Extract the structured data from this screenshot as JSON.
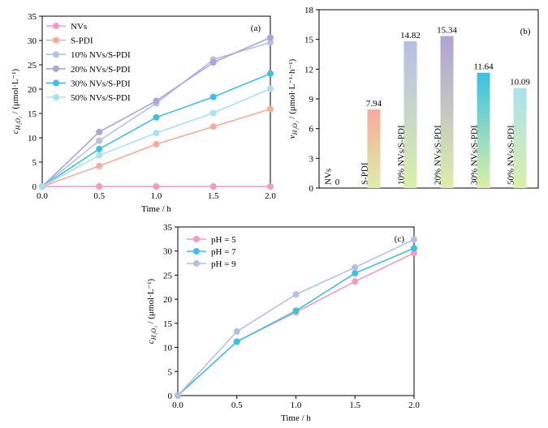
{
  "chart_data": [
    {
      "type": "line",
      "panel_label": "(a)",
      "xlabel": "Time / h",
      "ylabel_main": "c",
      "ylabel_sub": "H₂O₂",
      "ylabel_rest": " / (μmol·L⁻¹)",
      "xlim": [
        0,
        2.0
      ],
      "ylim": [
        0,
        35
      ],
      "xticks": [
        "0.0",
        "0.5",
        "1.0",
        "1.5",
        "2.0"
      ],
      "yticks": [
        "0",
        "5",
        "10",
        "15",
        "20",
        "25",
        "30",
        "35"
      ],
      "legend_position": "top-left",
      "x": [
        0,
        0.5,
        1.0,
        1.5,
        2.0
      ],
      "series": [
        {
          "name": "NVs",
          "color": "#f19ac6",
          "values": [
            0,
            0,
            0,
            0,
            0
          ]
        },
        {
          "name": "S-PDI",
          "color": "#f8ab9b",
          "values": [
            0,
            4.2,
            8.7,
            12.3,
            15.9
          ]
        },
        {
          "name": "10% NVs/S-PDI",
          "color": "#b4bfe6",
          "values": [
            0,
            9.4,
            17.1,
            26.1,
            29.6
          ]
        },
        {
          "name": "20% NVs/S-PDI",
          "color": "#b0a2d6",
          "values": [
            0,
            11.2,
            17.6,
            25.5,
            30.6
          ]
        },
        {
          "name": "30% NVs/S-PDI",
          "color": "#3dc0e1",
          "values": [
            0,
            7.7,
            14.2,
            18.4,
            23.2
          ]
        },
        {
          "name": "50% NVs/S-PDI",
          "color": "#abe1ee",
          "values": [
            0,
            6.4,
            11.0,
            15.1,
            20.1
          ]
        }
      ]
    },
    {
      "type": "bar",
      "panel_label": "(b)",
      "ylabel_main": "v",
      "ylabel_sub": "H₂O₂",
      "ylabel_rest": " / (μmol·L⁻¹·h⁻¹)",
      "ylim": [
        0,
        18
      ],
      "yticks": [
        "0",
        "3",
        "6",
        "9",
        "12",
        "15",
        "18"
      ],
      "categories": [
        "NVs",
        "S-PDI",
        "10% NVs/S-PDI",
        "20% NVs/S-PDI",
        "30% NVs/S-PDI",
        "50% NVs/S-PDI"
      ],
      "values": [
        0,
        7.94,
        14.82,
        15.34,
        11.64,
        10.09
      ],
      "value_labels": [
        "0",
        "7.94",
        "14.82",
        "15.34",
        "11.64",
        "10.09"
      ],
      "bar_top_colors": [
        "#f19ac6",
        "#f8ab9b",
        "#b4bfe6",
        "#b0a2d6",
        "#3dc0e1",
        "#abe1ee"
      ],
      "bar_bottom_color": "#dcefa9"
    },
    {
      "type": "line",
      "panel_label": "(c)",
      "xlabel": "Time / h",
      "ylabel_main": "c",
      "ylabel_sub": "H₂O₂",
      "ylabel_rest": " / (μmol·L⁻¹)",
      "xlim": [
        0,
        2.0
      ],
      "ylim": [
        0,
        35
      ],
      "xticks": [
        "0.0",
        "0.5",
        "1.0",
        "1.5",
        "2.0"
      ],
      "yticks": [
        "0",
        "5",
        "10",
        "15",
        "20",
        "25",
        "30",
        "35"
      ],
      "legend_position": "top-left",
      "x": [
        0,
        0.5,
        1.0,
        1.5,
        2.0
      ],
      "series": [
        {
          "name": "pH = 5",
          "color": "#f19ac6",
          "values": [
            0,
            11.2,
            17.3,
            23.7,
            29.6
          ]
        },
        {
          "name": "pH = 7",
          "color": "#3dc0e1",
          "values": [
            0,
            11.2,
            17.6,
            25.4,
            30.6
          ]
        },
        {
          "name": "pH = 9",
          "color": "#b4bfe6",
          "values": [
            0,
            13.3,
            21.0,
            26.6,
            32.4
          ]
        }
      ]
    }
  ]
}
